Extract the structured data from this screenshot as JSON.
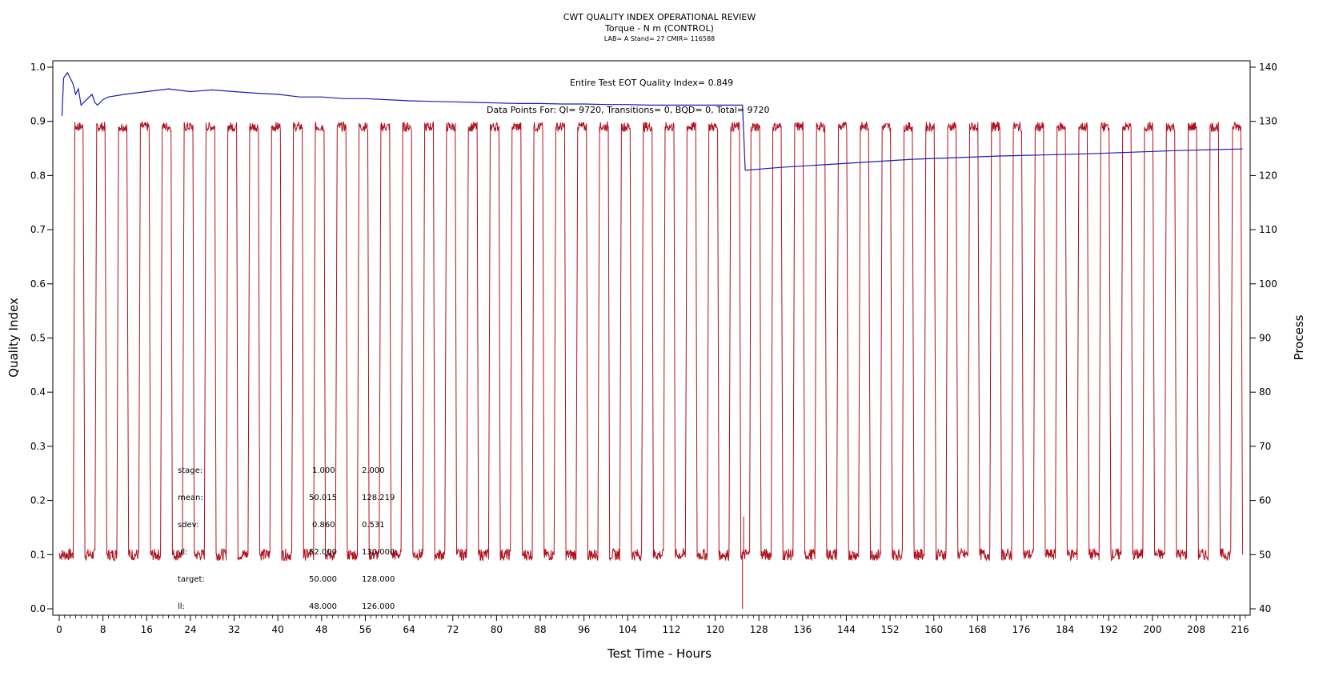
{
  "chart_data": {
    "type": "line",
    "title": "CWT QUALITY INDEX OPERATIONAL REVIEW",
    "subtitle": "Torque - N m (CONTROL)",
    "meta_line": "LAB= A Stand= 27 CMIR= 116588",
    "xlabel": "Test Time - Hours",
    "ylabel_left": "Quality Index",
    "ylabel_right": "Process",
    "xlim": [
      0,
      217
    ],
    "ylim_left": [
      0,
      1.0
    ],
    "ylim_right": [
      40,
      140
    ],
    "x_ticks": [
      0,
      8,
      16,
      24,
      32,
      40,
      48,
      56,
      64,
      72,
      80,
      88,
      96,
      104,
      112,
      120,
      128,
      136,
      144,
      152,
      160,
      168,
      176,
      184,
      192,
      200,
      208,
      216
    ],
    "y_left_ticks": [
      "0.0",
      "0.1",
      "0.2",
      "0.3",
      "0.4",
      "0.5",
      "0.6",
      "0.7",
      "0.8",
      "0.9",
      "1.0"
    ],
    "y_right_ticks": [
      "40",
      "50",
      "60",
      "70",
      "80",
      "90",
      "100",
      "110",
      "120",
      "130",
      "140"
    ],
    "annotations": {
      "qi_text": "Entire Test EOT Quality Index=  0.849",
      "points_text": "Data Points For: QI=  9720, Transitions=     0, BQD=     0, Total=  9720"
    },
    "stats_table": {
      "rows": [
        {
          "label": "stage:",
          "v1": "1.000",
          "v2": "2.000"
        },
        {
          "label": "mean:",
          "v1": "50.015",
          "v2": "128.219"
        },
        {
          "label": "sdev:",
          "v1": "0.860",
          "v2": "0.531"
        },
        {
          "label": "ul:",
          "v1": "52.000",
          "v2": "130.000"
        },
        {
          "label": "target:",
          "v1": "50.000",
          "v2": "128.000"
        },
        {
          "label": "ll:",
          "v1": "48.000",
          "v2": "126.000"
        }
      ]
    },
    "series": [
      {
        "color": "#1c1cb4",
        "axis": "left",
        "x": [
          0.5,
          0.8,
          1.5,
          2.0,
          2.5,
          3.0,
          3.5,
          4.0,
          5.0,
          6.0,
          6.5,
          7.0,
          8.0,
          9.0,
          12.0,
          16.0,
          20.0,
          24.0,
          28.0,
          32.0,
          36.0,
          40.0,
          44.0,
          48.0,
          52.0,
          56.0,
          60.0,
          64.0,
          68.0,
          72.0,
          76.0,
          80.0,
          84.0,
          88.0,
          92.0,
          96.0,
          100.0,
          104.0,
          108.0,
          112.0,
          116.0,
          119.0,
          124.0,
          125.0,
          125.5,
          126.0,
          132.0,
          140.0,
          148.0,
          156.0,
          164.0,
          172.0,
          180.0,
          188.0,
          196.0,
          204.0,
          212.0,
          216.5
        ],
        "y": [
          0.91,
          0.98,
          0.99,
          0.98,
          0.97,
          0.95,
          0.96,
          0.93,
          0.94,
          0.95,
          0.935,
          0.93,
          0.94,
          0.945,
          0.95,
          0.955,
          0.96,
          0.955,
          0.958,
          0.955,
          0.952,
          0.95,
          0.945,
          0.945,
          0.942,
          0.942,
          0.94,
          0.938,
          0.937,
          0.936,
          0.935,
          0.934,
          0.933,
          0.933,
          0.932,
          0.932,
          0.931,
          0.931,
          0.93,
          0.93,
          0.93,
          0.93,
          0.93,
          0.93,
          0.81,
          0.81,
          0.815,
          0.82,
          0.825,
          0.83,
          0.833,
          0.836,
          0.838,
          0.84,
          0.843,
          0.846,
          0.848,
          0.849
        ]
      },
      {
        "color": "#b0101e",
        "axis": "right",
        "description_of_pattern": "",
        "cycle_start_hours": [
          2.6,
          6.6,
          10.6,
          14.6,
          18.6,
          22.6,
          26.6,
          30.6,
          34.6,
          38.6,
          42.6,
          46.6,
          50.6,
          54.6,
          58.6,
          62.6,
          66.6,
          70.6,
          74.6,
          78.6,
          82.6,
          86.6,
          90.6,
          94.6,
          98.6,
          102.6,
          106.6,
          110.6,
          114.6,
          118.6,
          122.6,
          126.3,
          130.3,
          134.3,
          138.3,
          142.3,
          146.3,
          150.3,
          154.3,
          158.3,
          162.3,
          166.3,
          170.3,
          174.3,
          178.3,
          182.3,
          186.3,
          190.3,
          194.3,
          198.3,
          202.3,
          206.3,
          210.3,
          214.4
        ],
        "high_duration_hours": 1.6,
        "low_level": 50,
        "high_level": 129,
        "extra_points": [
          [
            125.0,
            40
          ],
          [
            125.2,
            57
          ]
        ]
      }
    ]
  }
}
